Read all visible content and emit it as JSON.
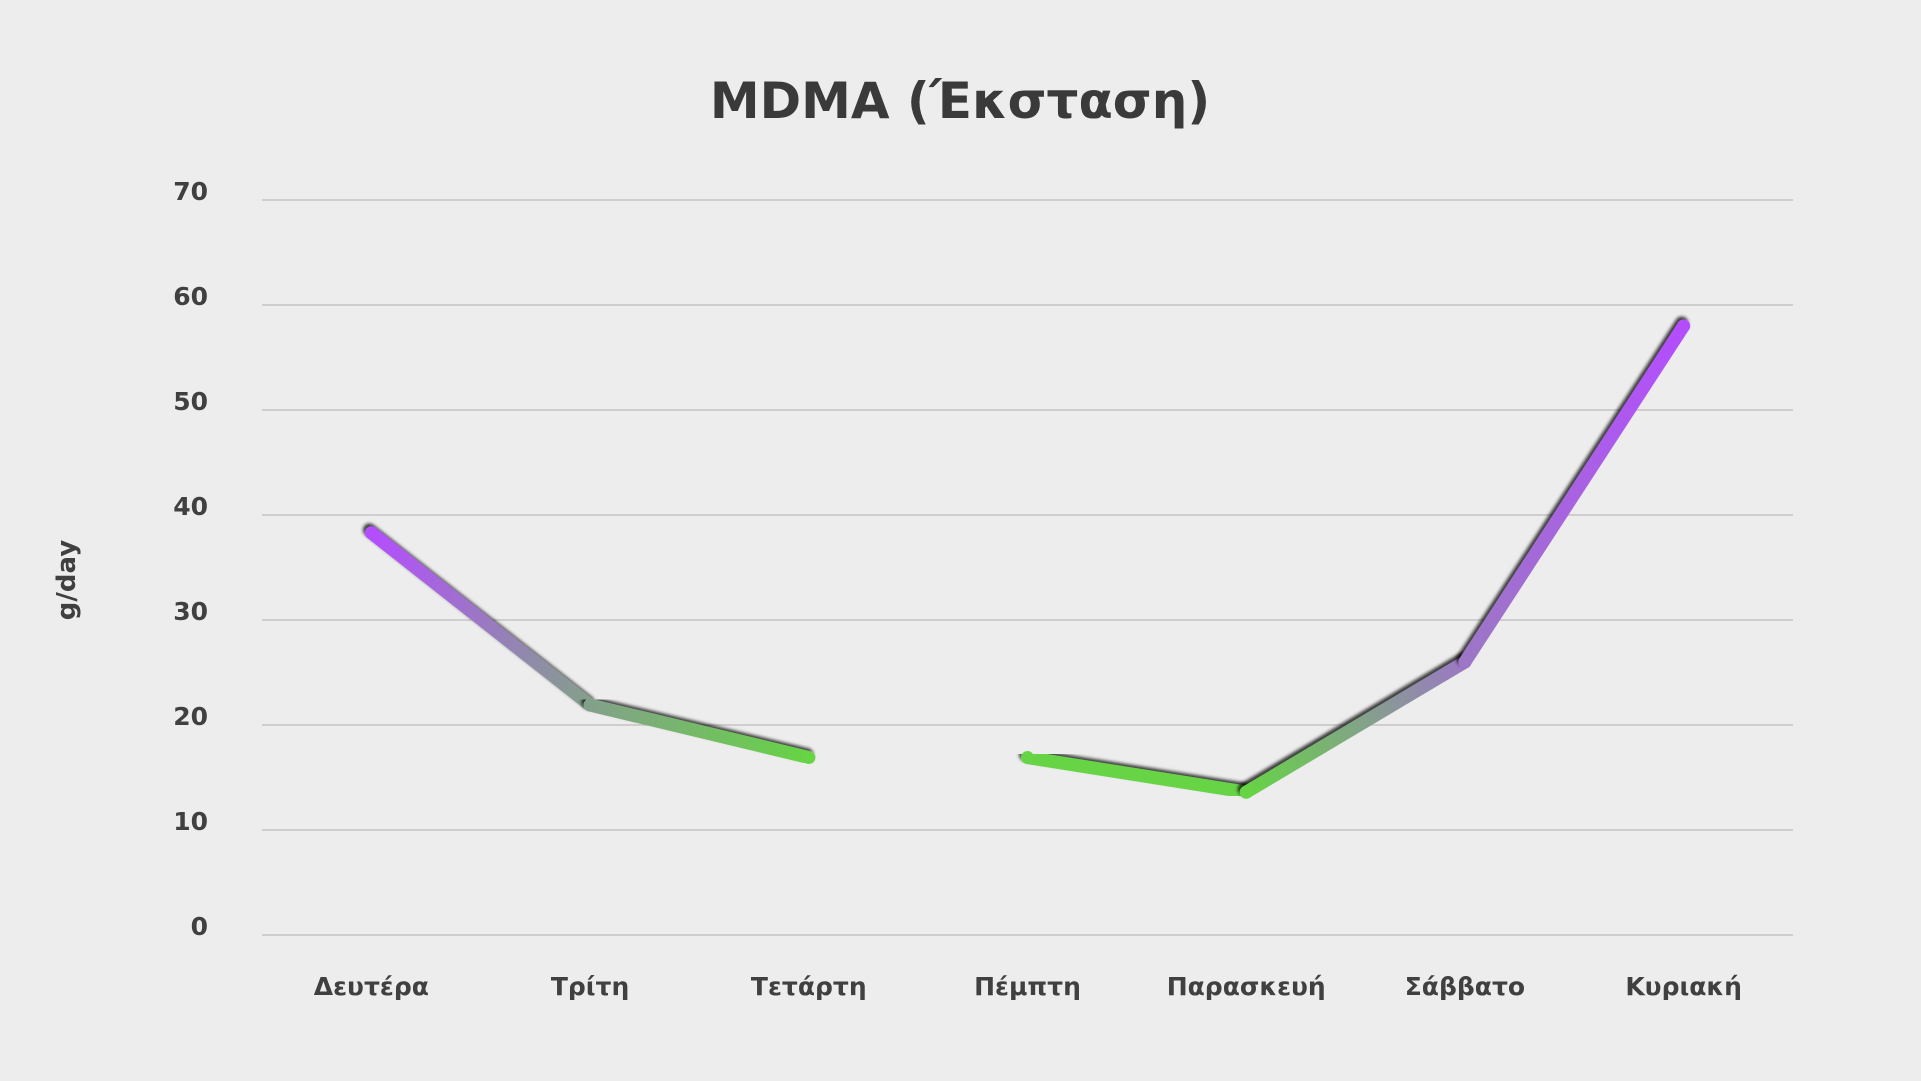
{
  "chart_data": {
    "type": "line",
    "title": "MDMA (Έκσταση)",
    "xlabel": "",
    "ylabel": "g/day",
    "ylim": [
      0,
      70
    ],
    "yticks": [
      0,
      10,
      20,
      30,
      40,
      50,
      60,
      70
    ],
    "grid": true,
    "categories": [
      "Δευτέρα",
      "Τρίτη",
      "Τετάρτη",
      "Πέμπτη",
      "Παρασκευή",
      "Σάββατο",
      "Κυριακή"
    ],
    "series": [
      {
        "name": "MDMA",
        "values": [
          38.3,
          21.9,
          16.9,
          16.9,
          13.6,
          26.0,
          58.0
        ]
      }
    ],
    "colors": {
      "high": "#b44dff",
      "high_dark": "#2a0a40",
      "low": "#66d444",
      "low_dark": "#1e4414",
      "grid": "#c4c4c4",
      "text": "#404040",
      "background": "#ededed"
    }
  }
}
